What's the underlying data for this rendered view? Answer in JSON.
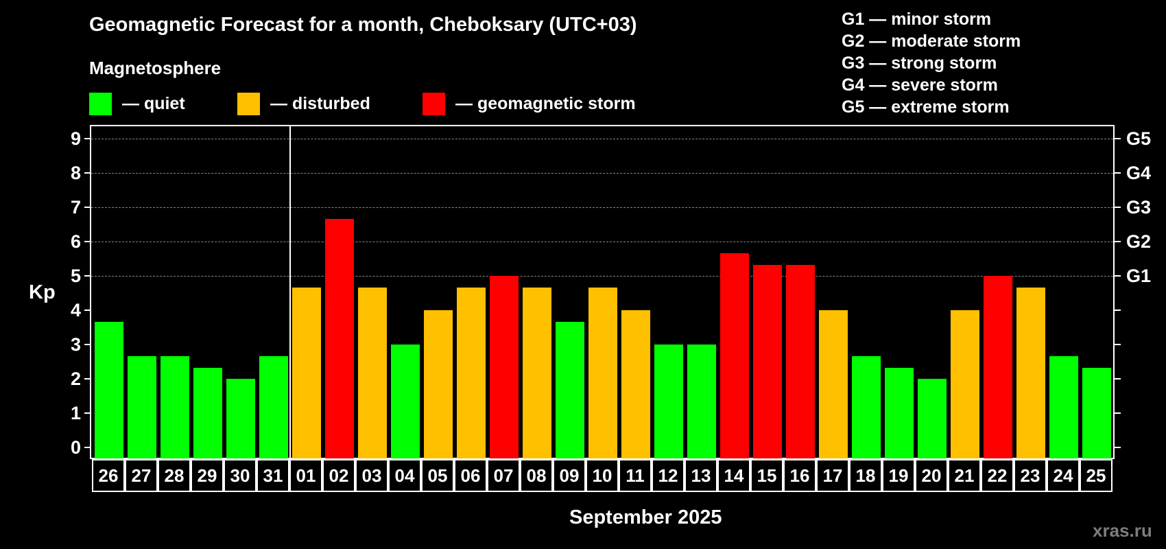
{
  "header": {
    "title": "Geomagnetic Forecast for a month, Cheboksary (UTC+03)",
    "subtitle": "Magnetosphere"
  },
  "legend": [
    {
      "label": "— quiet",
      "color": "#00FF00",
      "x": 130
    },
    {
      "label": "— disturbed",
      "color": "#FFC000",
      "x": 346
    },
    {
      "label": "— geomagnetic storm",
      "color": "#FF0000",
      "x": 616
    }
  ],
  "storm_levels": [
    "G1 — minor storm",
    "G2 — moderate storm",
    "G3 — strong storm",
    "G4 — severe storm",
    "G5 — extreme storm"
  ],
  "watermark": "xras.ru",
  "chart_data": {
    "type": "bar",
    "title": "Geomagnetic Forecast for a month, Cheboksary (UTC+03)",
    "subtitle": "Magnetosphere",
    "xlabel": "September 2025",
    "ylabel": "Kp",
    "ylim": [
      0,
      9
    ],
    "yticks": [
      0,
      1,
      2,
      3,
      4,
      5,
      6,
      7,
      8,
      9
    ],
    "y2_ticks": [
      {
        "kp": 5,
        "label": "G1"
      },
      {
        "kp": 6,
        "label": "G2"
      },
      {
        "kp": 7,
        "label": "G3"
      },
      {
        "kp": 8,
        "label": "G4"
      },
      {
        "kp": 9,
        "label": "G5"
      }
    ],
    "grid": {
      "y": true,
      "style": "dashed",
      "from_kp": 5
    },
    "legend_position": "top",
    "colors": {
      "quiet": "#00FF00",
      "disturbed": "#FFC000",
      "storm": "#FF0000"
    },
    "month_separator_after_index": 5,
    "categories": [
      "26",
      "27",
      "28",
      "29",
      "30",
      "31",
      "01",
      "02",
      "03",
      "04",
      "05",
      "06",
      "07",
      "08",
      "09",
      "10",
      "11",
      "12",
      "13",
      "14",
      "15",
      "16",
      "17",
      "18",
      "19",
      "20",
      "21",
      "22",
      "23",
      "24",
      "25"
    ],
    "values": [
      3.67,
      2.67,
      2.67,
      2.33,
      2.0,
      2.67,
      4.67,
      6.67,
      4.67,
      3.0,
      4.0,
      4.67,
      5.0,
      4.67,
      3.67,
      4.67,
      4.0,
      3.0,
      3.0,
      5.67,
      5.33,
      5.33,
      4.0,
      2.67,
      2.33,
      2.0,
      4.0,
      5.0,
      4.67,
      2.67,
      2.33
    ],
    "status": [
      "quiet",
      "quiet",
      "quiet",
      "quiet",
      "quiet",
      "quiet",
      "disturbed",
      "storm",
      "disturbed",
      "quiet",
      "disturbed",
      "disturbed",
      "storm",
      "disturbed",
      "quiet",
      "disturbed",
      "disturbed",
      "quiet",
      "quiet",
      "storm",
      "storm",
      "storm",
      "disturbed",
      "quiet",
      "quiet",
      "quiet",
      "disturbed",
      "storm",
      "disturbed",
      "quiet",
      "quiet"
    ]
  }
}
